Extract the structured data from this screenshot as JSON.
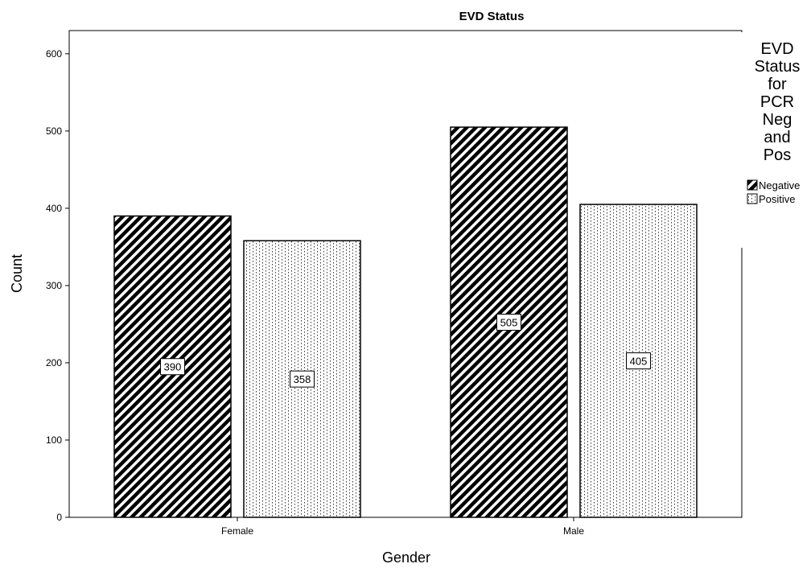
{
  "chart_data": {
    "type": "bar",
    "title": "EVD Status",
    "xlabel": "Gender",
    "ylabel": "Count",
    "categories": [
      "Female",
      "Male"
    ],
    "ylim": [
      0,
      630
    ],
    "yticks": [
      0,
      100,
      200,
      300,
      400,
      500,
      600
    ],
    "grid": false,
    "legend": {
      "title": "EVD Status for PCR Neg and Pos",
      "title_lines": [
        "EVD",
        "Status",
        "for",
        "PCR",
        "Neg",
        "and",
        "Pos"
      ],
      "placement": "right"
    },
    "series": [
      {
        "name": "Negative",
        "values": [
          390,
          505
        ],
        "pattern": "diagonal-hatch",
        "color": "#000000"
      },
      {
        "name": "Positive",
        "values": [
          358,
          405
        ],
        "pattern": "dotted-vertical",
        "color": "#ffffff"
      }
    ]
  }
}
